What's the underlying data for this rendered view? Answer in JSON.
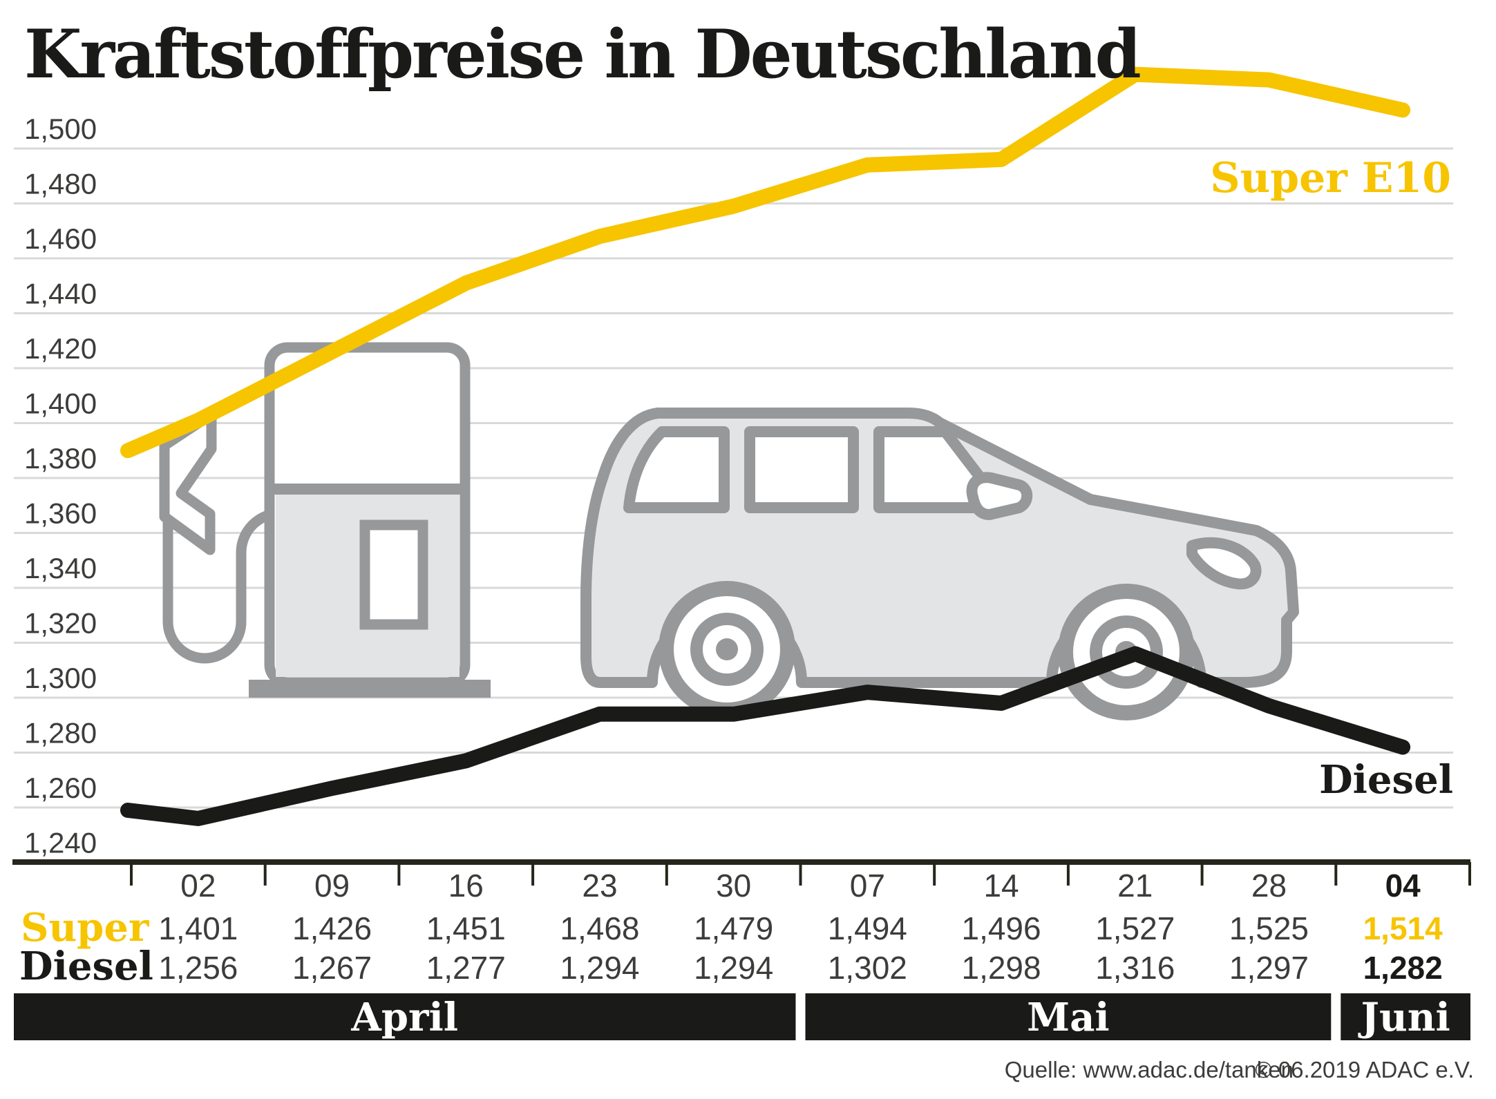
{
  "title": "Kraftstoffpreise in Deutschland",
  "chart_labels": {
    "super": "Super E10",
    "diesel": "Diesel"
  },
  "table": {
    "row_labels": {
      "super": "Super",
      "diesel": "Diesel"
    }
  },
  "source": {
    "quelle": "Quelle: www.adac.de/tanken",
    "copyright": "© 06.2019  ADAC e.V."
  },
  "colors": {
    "yellow": "#f7c400",
    "black": "#1a1a18",
    "icon_outline": "#97989a",
    "icon_fill": "#e3e4e6",
    "grid": "#d9d9d9",
    "axis": "#26251b",
    "text": "#3c3c3b"
  },
  "chart_data": {
    "type": "line",
    "title": "Kraftstoffpreise in Deutschland",
    "unit_note": "prices shown as 1,234 (Euro per litre, German decimal comma)",
    "categories": [
      "02",
      "09",
      "16",
      "23",
      "30",
      "07",
      "14",
      "21",
      "28",
      "04"
    ],
    "series": [
      {
        "name": "Super",
        "legend": "Super E10",
        "color": "#f7c400",
        "values": [
          1401,
          1426,
          1451,
          1468,
          1479,
          1494,
          1496,
          1527,
          1525,
          1514
        ],
        "lead_in_estimate": 1390
      },
      {
        "name": "Diesel",
        "legend": "Diesel",
        "color": "#1a1a18",
        "values": [
          1256,
          1267,
          1277,
          1294,
          1294,
          1302,
          1298,
          1316,
          1297,
          1282
        ],
        "lead_in_estimate": 1259
      }
    ],
    "months": [
      {
        "label": "April",
        "cols": 5
      },
      {
        "label": "Mai",
        "cols": 4
      },
      {
        "label": "Juni",
        "cols": 1
      }
    ],
    "y_axis": {
      "min": 1240,
      "max": 1500,
      "step": 20,
      "tick_labels": [
        "1,500",
        "1,480",
        "1,460",
        "1,440",
        "1,420",
        "1,400",
        "1,380",
        "1,360",
        "1,340",
        "1,320",
        "1,300",
        "1,280",
        "1,260",
        "1,240"
      ]
    },
    "highlight_last_column": true,
    "legend_position": "inline-right",
    "grid": true
  }
}
